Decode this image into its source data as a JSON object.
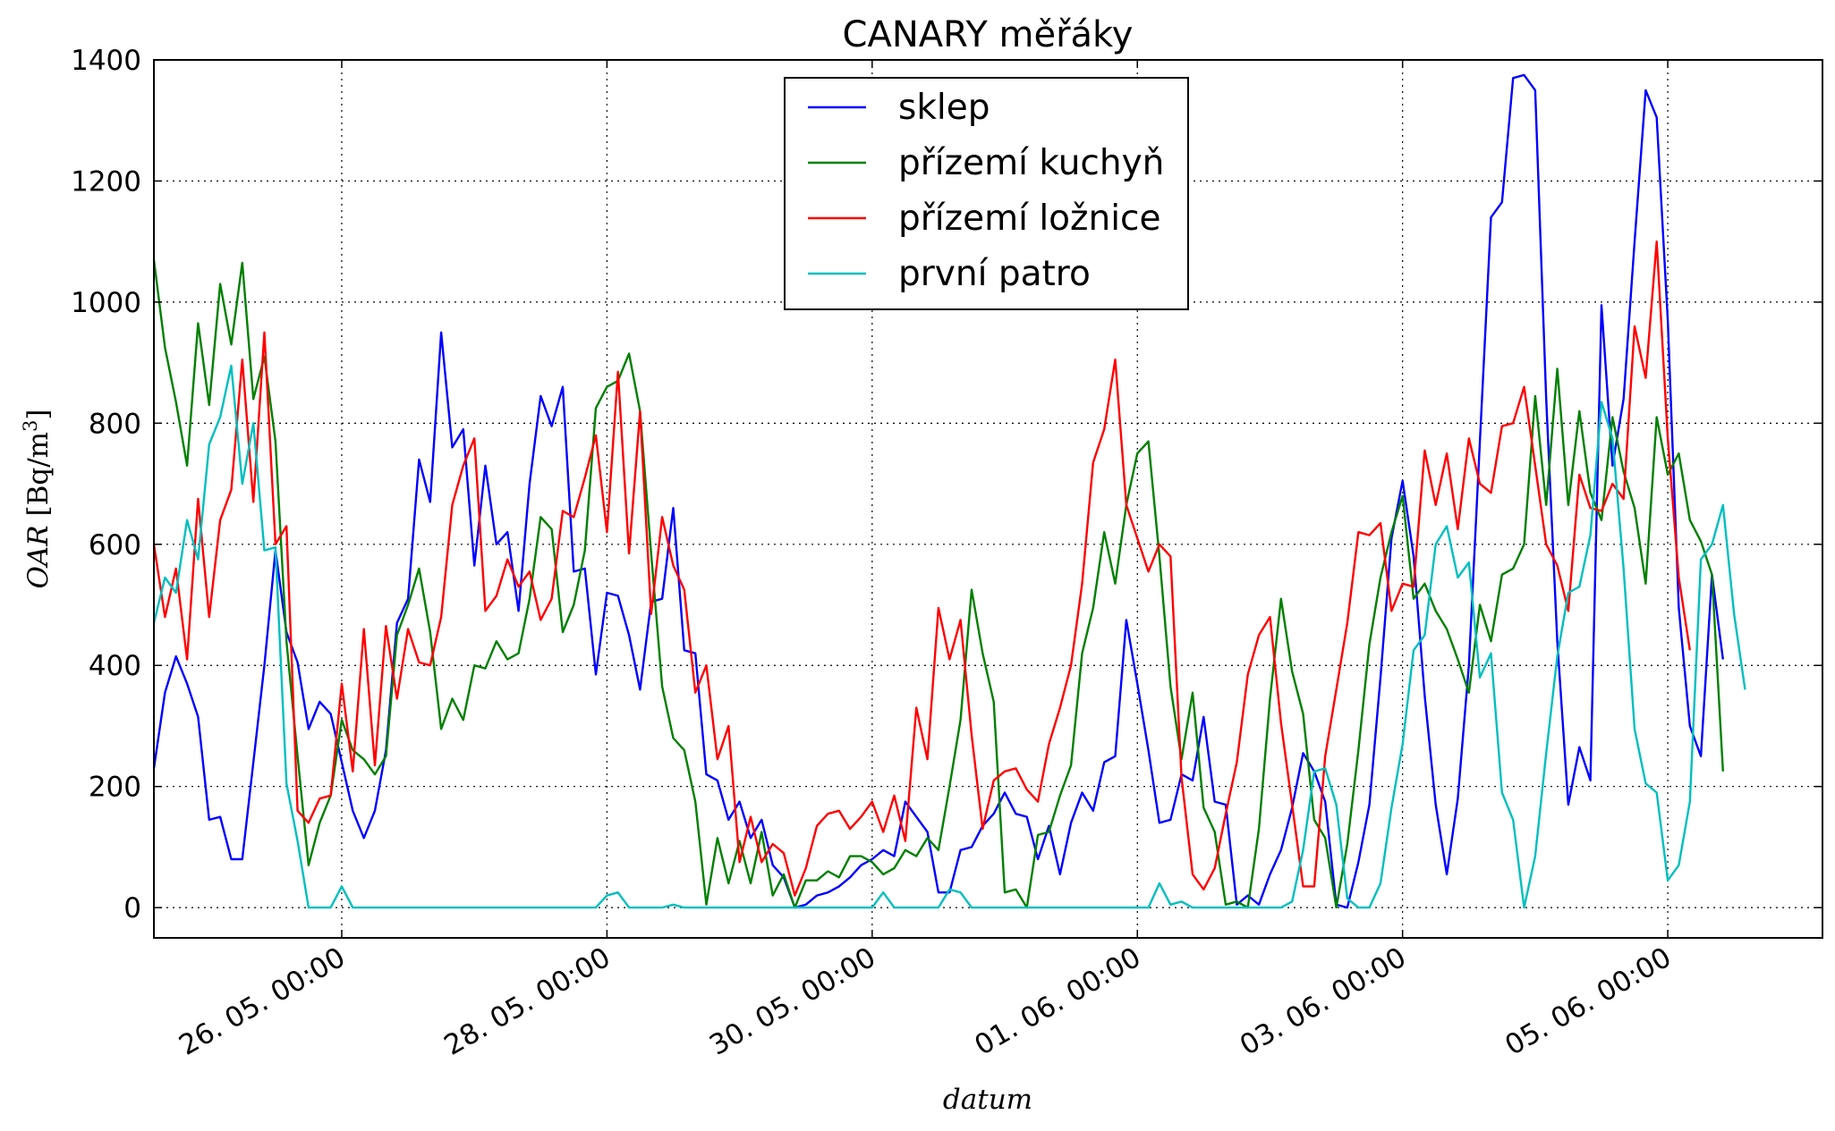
{
  "chart_data": {
    "type": "line",
    "title": "CANARY měřáky",
    "xlabel": "datum",
    "ylabel": "OAR [Bq/m³]",
    "ylabel_parts": {
      "var": "OAR",
      "unit": "[Bq/m",
      "exp": "3",
      "close": "]"
    },
    "ylim": [
      -50,
      1400
    ],
    "yticks": [
      0,
      200,
      400,
      600,
      800,
      1000,
      1200,
      1400
    ],
    "xlim": [
      "24.05. 14:00",
      "06.06. 04:00"
    ],
    "xticks": [
      {
        "label": "26. 05. 00:00",
        "time": "26.05. 00:00"
      },
      {
        "label": "28. 05. 00:00",
        "time": "28.05. 00:00"
      },
      {
        "label": "30. 05. 00:00",
        "time": "30.05. 00:00"
      },
      {
        "label": "01. 06. 00:00",
        "time": "01.06. 00:00"
      },
      {
        "label": "03. 06. 00:00",
        "time": "03.06. 00:00"
      },
      {
        "label": "05. 06. 00:00",
        "time": "05.06. 00:00"
      }
    ],
    "grid": true,
    "legend_position": "top-center",
    "x_start": "24.05. 14:00",
    "x_step_hours": 2,
    "series": [
      {
        "name": "sklep",
        "color": "#0000ff",
        "values": [
          230,
          355,
          415,
          370,
          315,
          145,
          150,
          80,
          80,
          240,
          400,
          590,
          455,
          405,
          295,
          340,
          320,
          240,
          160,
          115,
          160,
          260,
          470,
          510,
          740,
          670,
          950,
          760,
          790,
          565,
          730,
          600,
          620,
          490,
          700,
          845,
          795,
          860,
          555,
          560,
          385,
          520,
          515,
          450,
          360,
          505,
          510,
          660,
          425,
          420,
          220,
          210,
          145,
          175,
          115,
          145,
          70,
          50,
          0,
          5,
          20,
          25,
          35,
          50,
          70,
          80,
          95,
          85,
          175,
          150,
          125,
          25,
          25,
          95,
          100,
          135,
          155,
          190,
          155,
          150,
          80,
          135,
          55,
          140,
          190,
          160,
          240,
          250,
          475,
          370,
          260,
          140,
          145,
          220,
          210,
          315,
          175,
          170,
          5,
          20,
          5,
          55,
          95,
          165,
          255,
          225,
          175,
          5,
          0,
          75,
          170,
          380,
          610,
          705,
          580,
          350,
          170,
          55,
          180,
          400,
          770,
          1140,
          1165,
          1370,
          1375,
          1350,
          840,
          440,
          170,
          265,
          210,
          995,
          730,
          840,
          1100,
          1350,
          1305,
          970,
          495,
          300,
          250,
          550,
          410
        ]
      },
      {
        "name": "přízemí kuchyň",
        "color": "#008000",
        "values": [
          1070,
          925,
          835,
          730,
          965,
          830,
          1030,
          930,
          1065,
          840,
          910,
          770,
          440,
          250,
          70,
          140,
          185,
          310,
          260,
          245,
          220,
          250,
          450,
          500,
          560,
          455,
          295,
          345,
          310,
          400,
          395,
          440,
          410,
          420,
          510,
          645,
          625,
          455,
          500,
          590,
          825,
          860,
          870,
          915,
          820,
          585,
          365,
          280,
          260,
          175,
          5,
          115,
          40,
          110,
          40,
          125,
          20,
          55,
          0,
          45,
          45,
          60,
          50,
          85,
          85,
          75,
          55,
          65,
          95,
          85,
          115,
          95,
          200,
          310,
          525,
          420,
          340,
          25,
          30,
          0,
          120,
          125,
          185,
          235,
          420,
          495,
          620,
          535,
          665,
          750,
          770,
          580,
          365,
          245,
          355,
          165,
          125,
          5,
          10,
          0,
          130,
          345,
          510,
          390,
          320,
          145,
          115,
          0,
          105,
          260,
          435,
          545,
          620,
          680,
          510,
          535,
          490,
          460,
          410,
          355,
          500,
          440,
          550,
          560,
          600,
          845,
          665,
          890,
          665,
          820,
          685,
          640,
          810,
          720,
          660,
          535,
          810,
          715,
          750,
          640,
          605,
          550,
          225
        ]
      },
      {
        "name": "přízemí ložnice",
        "color": "#ff0000",
        "values": [
          600,
          480,
          560,
          410,
          675,
          480,
          640,
          690,
          905,
          670,
          950,
          600,
          630,
          160,
          140,
          180,
          185,
          370,
          225,
          460,
          235,
          465,
          345,
          460,
          405,
          400,
          480,
          665,
          730,
          775,
          490,
          515,
          575,
          530,
          555,
          475,
          510,
          655,
          645,
          710,
          780,
          620,
          885,
          585,
          820,
          485,
          645,
          565,
          525,
          355,
          400,
          245,
          300,
          75,
          150,
          75,
          105,
          90,
          20,
          65,
          135,
          155,
          160,
          130,
          150,
          175,
          125,
          185,
          110,
          330,
          245,
          495,
          410,
          475,
          285,
          130,
          210,
          225,
          230,
          195,
          175,
          270,
          330,
          400,
          535,
          735,
          790,
          905,
          665,
          610,
          555,
          600,
          580,
          215,
          55,
          30,
          65,
          155,
          240,
          385,
          450,
          480,
          305,
          170,
          35,
          35,
          250,
          360,
          470,
          620,
          615,
          635,
          490,
          535,
          530,
          755,
          665,
          750,
          625,
          775,
          700,
          685,
          795,
          800,
          860,
          730,
          600,
          565,
          490,
          715,
          660,
          655,
          700,
          675,
          960,
          875,
          1100,
          775,
          545,
          425
        ]
      },
      {
        "name": "první patro",
        "color": "#00bfbf",
        "values": [
          470,
          545,
          520,
          640,
          575,
          765,
          810,
          895,
          700,
          800,
          590,
          595,
          205,
          110,
          0,
          0,
          0,
          35,
          0,
          0,
          0,
          0,
          0,
          0,
          0,
          0,
          0,
          0,
          0,
          0,
          0,
          0,
          0,
          0,
          0,
          0,
          0,
          0,
          0,
          0,
          0,
          20,
          25,
          0,
          0,
          0,
          0,
          5,
          0,
          0,
          0,
          0,
          0,
          0,
          0,
          0,
          0,
          0,
          0,
          0,
          0,
          0,
          0,
          0,
          0,
          0,
          25,
          0,
          0,
          0,
          0,
          0,
          30,
          25,
          0,
          0,
          0,
          0,
          0,
          0,
          0,
          0,
          0,
          0,
          0,
          0,
          0,
          0,
          0,
          0,
          0,
          40,
          5,
          10,
          0,
          0,
          0,
          0,
          0,
          0,
          0,
          0,
          0,
          10,
          95,
          225,
          230,
          170,
          15,
          0,
          0,
          40,
          165,
          270,
          425,
          450,
          600,
          630,
          545,
          570,
          380,
          420,
          190,
          145,
          0,
          85,
          255,
          415,
          520,
          530,
          615,
          835,
          775,
          560,
          295,
          205,
          190,
          45,
          70,
          175,
          575,
          600,
          665,
          485,
          360
        ]
      }
    ]
  }
}
